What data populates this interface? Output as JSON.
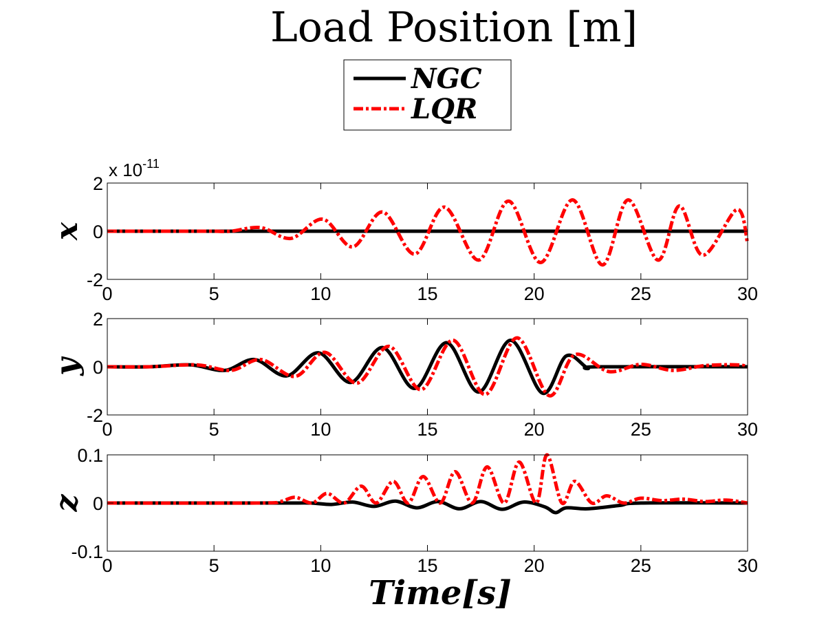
{
  "chart_data": {
    "type": "line",
    "title": "Load Position [m]",
    "legend": {
      "placement": "top-center",
      "entries": [
        {
          "name": "NGC",
          "color": "#000000",
          "style": "solid"
        },
        {
          "name": "LQR",
          "color": "#ff0000",
          "style": "dash-dot"
        }
      ]
    },
    "xlabel": "Time[s]",
    "xlim": [
      0,
      30
    ],
    "xticks": [
      "0",
      "5",
      "10",
      "15",
      "20",
      "25",
      "30"
    ],
    "subplots": [
      {
        "ylabel": "x",
        "ylim": [
          -2,
          2
        ],
        "yticks": [
          "2",
          "0",
          "-2"
        ],
        "exponent_base": "x 10",
        "exponent_power": "-11",
        "series": [
          {
            "name": "NGC",
            "x": [
              0,
              30
            ],
            "y": [
              0,
              0
            ]
          },
          {
            "name": "LQR",
            "x": [
              0,
              4,
              5,
              5.8,
              7.2,
              8.6,
              10.1,
              11.5,
              12.9,
              14.4,
              15.8,
              17.4,
              18.8,
              20.3,
              21.8,
              23.2,
              24.4,
              25.8,
              26.8,
              27.9,
              29.5,
              30
            ],
            "y": [
              0,
              0,
              0,
              0,
              0.15,
              -0.3,
              0.5,
              -0.65,
              0.8,
              -0.95,
              1.0,
              -1.2,
              1.25,
              -1.3,
              1.3,
              -1.4,
              1.3,
              -1.2,
              1.05,
              -1.0,
              0.9,
              -0.5
            ]
          }
        ]
      },
      {
        "ylabel": "y",
        "ylim": [
          -2,
          2
        ],
        "yticks": [
          "2",
          "0",
          "-2"
        ],
        "series": [
          {
            "name": "NGC",
            "x": [
              0,
              2,
              3.9,
              5.5,
              6.9,
              8.4,
              9.9,
              11.4,
              12.9,
              14.4,
              15.9,
              17.4,
              18.9,
              20.4,
              21.5,
              22.5,
              23,
              30
            ],
            "y": [
              0,
              0,
              0.08,
              -0.15,
              0.3,
              -0.38,
              0.58,
              -0.65,
              0.8,
              -0.9,
              1.0,
              -1.05,
              1.1,
              -1.1,
              0.45,
              -0.05,
              0,
              0
            ]
          },
          {
            "name": "LQR",
            "x": [
              0,
              2,
              4.2,
              5.8,
              7.2,
              8.8,
              10.2,
              11.7,
              13.2,
              14.7,
              16.2,
              17.7,
              19.2,
              20.7,
              21.9,
              23.5,
              25,
              26.5,
              28,
              29.5,
              30
            ],
            "y": [
              0,
              0,
              0.08,
              -0.15,
              0.3,
              -0.4,
              0.6,
              -0.68,
              0.85,
              -0.95,
              1.1,
              -1.15,
              1.2,
              -1.2,
              0.5,
              -0.2,
              0.1,
              -0.15,
              0.05,
              0.08,
              0
            ]
          }
        ]
      },
      {
        "ylabel": "z",
        "ylim": [
          -0.1,
          0.1
        ],
        "yticks": [
          "0.1",
          "0",
          "-0.1"
        ],
        "series": [
          {
            "name": "NGC",
            "x": [
              0,
              8,
              9.5,
              10.5,
              11.5,
              12.5,
              13.5,
              14.5,
              15.5,
              16.5,
              17.5,
              18.5,
              19.5,
              20.5,
              21.0,
              21.5,
              22.5,
              24,
              25,
              30
            ],
            "y": [
              0,
              0,
              0,
              -0.003,
              0.002,
              -0.007,
              0.004,
              -0.01,
              0.003,
              -0.012,
              0.003,
              -0.013,
              0.002,
              -0.008,
              -0.02,
              -0.01,
              -0.012,
              -0.005,
              0,
              0
            ]
          },
          {
            "name": "LQR",
            "x": [
              0,
              7,
              8.1,
              8.8,
              9.6,
              10.3,
              11.1,
              11.9,
              12.6,
              13.4,
              14.1,
              14.8,
              15.6,
              16.3,
              17.1,
              17.8,
              18.6,
              19.3,
              20.1,
              20.6,
              21.3,
              21.9,
              22.7,
              23.4,
              24.2,
              25,
              26,
              27,
              28,
              29,
              30
            ],
            "y": [
              0,
              0,
              0.003,
              0.012,
              0,
              0.02,
              0,
              0.035,
              0,
              0.045,
              0,
              0.055,
              0,
              0.065,
              0,
              0.075,
              0,
              0.085,
              0,
              0.1,
              0,
              0.045,
              0,
              0.015,
              0,
              0.01,
              0.005,
              0.008,
              0.003,
              0.006,
              0
            ]
          }
        ]
      }
    ]
  }
}
